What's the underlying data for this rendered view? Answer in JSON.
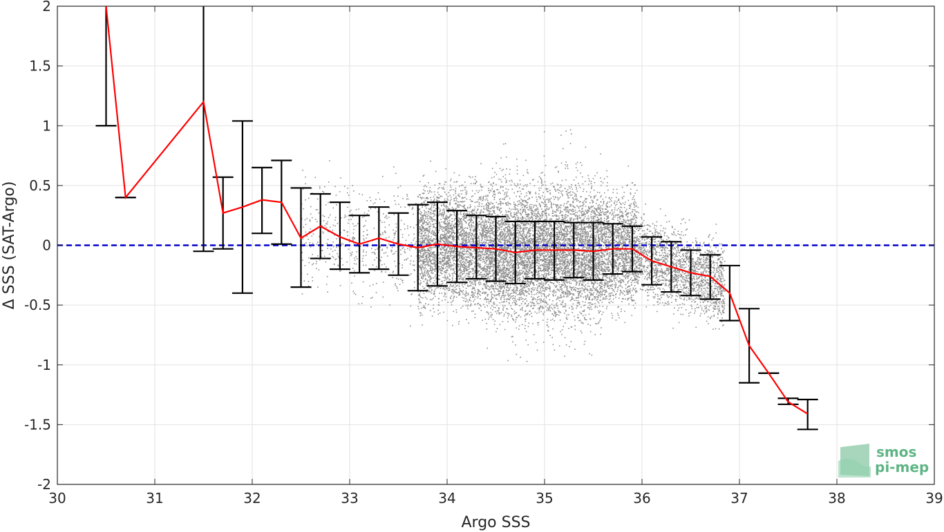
{
  "chart_data": {
    "type": "scatter",
    "title": "",
    "xlabel": "Argo SSS",
    "ylabel": "Δ SSS (SAT-Argo)",
    "xlim": [
      30,
      39
    ],
    "ylim": [
      -2,
      2
    ],
    "xticks": [
      30,
      31,
      32,
      33,
      34,
      35,
      36,
      37,
      38,
      39
    ],
    "yticks": [
      -2,
      -1.5,
      -1,
      -0.5,
      0,
      0.5,
      1,
      1.5,
      2
    ],
    "ytick_labels": [
      "-2",
      "-1.5",
      "-1",
      "-0.5",
      "0",
      "0.5",
      "1",
      "1.5",
      "2"
    ],
    "grid": true,
    "reference_line": {
      "y": 0,
      "style": "dashed",
      "color": "#0000cc"
    },
    "scatter_color": "#8c8c8c",
    "mean_line_color": "#ff0000",
    "errorbar_color": "#000000",
    "scatter_description": "dense cloud of matchup points, mostly between SSS 33.7 and 36.8 and Δ SSS -1.6 to 1.2",
    "binned_mean": {
      "x": [
        30.5,
        30.7,
        31.5,
        31.7,
        31.9,
        32.1,
        32.3,
        32.5,
        32.7,
        32.9,
        33.1,
        33.3,
        33.5,
        33.7,
        33.9,
        34.1,
        34.3,
        34.5,
        34.7,
        34.9,
        35.1,
        35.3,
        35.5,
        35.7,
        35.9,
        36.1,
        36.3,
        36.5,
        36.7,
        36.9,
        37.1,
        37.3,
        37.5,
        37.7
      ],
      "mean": [
        2.0,
        0.4,
        1.2,
        0.27,
        0.32,
        0.38,
        0.36,
        0.06,
        0.16,
        0.07,
        0.01,
        0.06,
        0.01,
        -0.02,
        0.01,
        -0.01,
        -0.02,
        -0.03,
        -0.06,
        -0.04,
        -0.04,
        -0.04,
        -0.05,
        -0.03,
        -0.03,
        -0.13,
        -0.18,
        -0.23,
        -0.26,
        -0.4,
        -0.84,
        -1.07,
        -1.31,
        -1.41
      ],
      "lower": [
        1.0,
        0.4,
        -0.05,
        -0.03,
        -0.4,
        0.1,
        0.01,
        -0.35,
        -0.11,
        -0.2,
        -0.23,
        -0.2,
        -0.25,
        -0.38,
        -0.34,
        -0.31,
        -0.28,
        -0.3,
        -0.32,
        -0.28,
        -0.29,
        -0.27,
        -0.29,
        -0.24,
        -0.22,
        -0.33,
        -0.39,
        -0.42,
        -0.45,
        -0.63,
        -1.15,
        -1.07,
        -1.33,
        -1.54
      ],
      "upper": [
        2.0,
        0.4,
        2.0,
        0.57,
        1.04,
        0.65,
        0.71,
        0.48,
        0.43,
        0.36,
        0.25,
        0.32,
        0.27,
        0.34,
        0.36,
        0.29,
        0.25,
        0.24,
        0.2,
        0.2,
        0.2,
        0.19,
        0.19,
        0.18,
        0.16,
        0.07,
        0.03,
        -0.04,
        -0.08,
        -0.17,
        -0.53,
        -1.07,
        -1.28,
        -1.29
      ]
    },
    "legend": null
  },
  "logo": {
    "line1": "smos",
    "line2": "pi-mep",
    "color": "#5fb486"
  }
}
